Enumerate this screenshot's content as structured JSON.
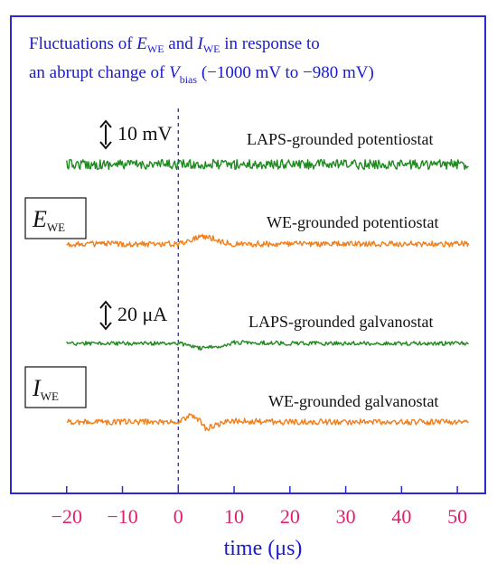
{
  "chart_data": {
    "type": "line",
    "title": {
      "line1": [
        "Fluctuations of ",
        "E",
        "WE",
        " and ",
        "I",
        "WE",
        " in response to"
      ],
      "line2": [
        "an abrupt change of ",
        "V",
        "bias",
        " (−1000 mV to −980 mV)"
      ]
    },
    "xlabel": "time (μs)",
    "xlim": [
      -30,
      55
    ],
    "x_ticks": [
      -20,
      -10,
      0,
      10,
      20,
      30,
      40,
      50
    ],
    "tick_labels": [
      "−20",
      "−10",
      "0",
      "10",
      "20",
      "30",
      "40",
      "50"
    ],
    "step_time": 0,
    "scale_bars": [
      {
        "text": "10 mV",
        "value": 10,
        "unit": "mV"
      },
      {
        "text": "20 μA",
        "value": 20,
        "unit": "μA"
      }
    ],
    "group_labels": [
      {
        "main": "E",
        "sub": "WE"
      },
      {
        "main": "I",
        "sub": "WE"
      }
    ],
    "series": [
      {
        "name": "LAPS-grounded potentiostat",
        "color": "#1f8a1f",
        "group": 0,
        "x": [
          -20,
          -10,
          0,
          5,
          10,
          20,
          30,
          40,
          52
        ],
        "y": [
          0,
          0,
          0,
          0,
          0,
          0,
          0,
          0,
          0
        ]
      },
      {
        "name": "WE-grounded potentiostat",
        "color": "#f07f1c",
        "group": 0,
        "x": [
          -20,
          -10,
          0,
          2,
          4,
          6,
          8,
          10,
          20,
          30,
          40,
          52
        ],
        "y": [
          0,
          0,
          0,
          2,
          4,
          3,
          1,
          0,
          0,
          0,
          0,
          0
        ]
      },
      {
        "name": "LAPS-grounded galvanostat",
        "color": "#1f8a1f",
        "group": 1,
        "x": [
          -20,
          -10,
          0,
          2,
          4,
          6,
          8,
          10,
          12,
          20,
          30,
          40,
          52
        ],
        "y": [
          0,
          0,
          0,
          -2,
          -5,
          -4,
          -2,
          1,
          1,
          0,
          0,
          0,
          0
        ]
      },
      {
        "name": "WE-grounded galvanostat",
        "color": "#f07f1c",
        "group": 1,
        "x": [
          -20,
          -10,
          0,
          2,
          3,
          4,
          5,
          6,
          8,
          10,
          20,
          30,
          40,
          52
        ],
        "y": [
          0,
          0,
          0,
          6,
          5,
          0,
          -7,
          -4,
          -1,
          1,
          0,
          0,
          0,
          0
        ]
      }
    ]
  }
}
